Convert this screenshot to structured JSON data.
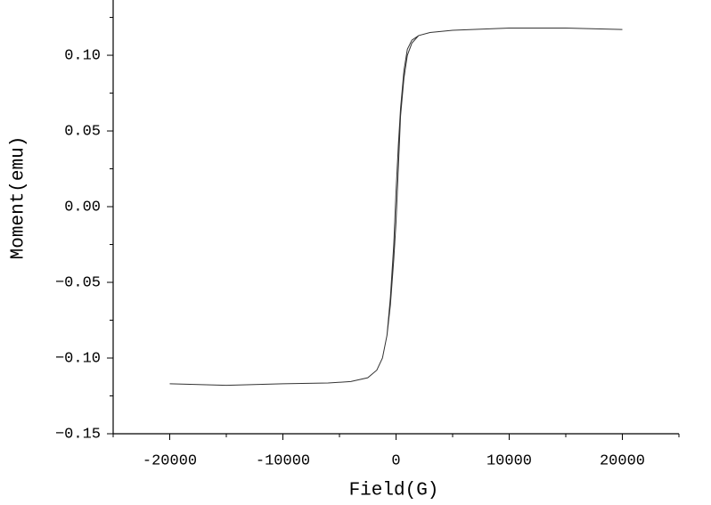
{
  "chart_data": {
    "type": "line",
    "x_label": "Field(G)",
    "y_label": "Moment(emu)",
    "x": [
      20000,
      15000,
      10000,
      5000,
      3000,
      2000,
      1400,
      1000,
      700,
      400,
      200,
      0,
      -200,
      -500,
      -800,
      -1200,
      -1700,
      -2500,
      -4000,
      -6000,
      -10000,
      -15000,
      -20000,
      -15000,
      -10000,
      -6000,
      -4000,
      -2500,
      -1700,
      -1200,
      -800,
      -500,
      -200,
      0,
      200,
      400,
      700,
      1000,
      1400,
      2000,
      3000,
      5000,
      10000,
      15000,
      20000
    ],
    "series": [
      {
        "color": "#333333",
        "values": [
          0.117,
          0.118,
          0.118,
          0.1165,
          0.115,
          0.113,
          0.11,
          0.104,
          0.09,
          0.065,
          0.04,
          0.01,
          -0.025,
          -0.06,
          -0.085,
          -0.1,
          -0.108,
          -0.113,
          -0.1155,
          -0.1165,
          -0.117,
          -0.118,
          -0.117,
          -0.118,
          -0.117,
          -0.1165,
          -0.1155,
          -0.113,
          -0.108,
          -0.1,
          -0.085,
          -0.065,
          -0.035,
          -0.01,
          0.025,
          0.06,
          0.085,
          0.1,
          0.108,
          0.113,
          0.115,
          0.1165,
          0.118,
          0.118,
          0.117
        ]
      }
    ],
    "xlim": [
      -25000,
      25000
    ],
    "xticks": [
      -20000,
      -10000,
      0,
      10000,
      20000
    ],
    "xminorticks": [
      -25000,
      -15000,
      -5000,
      5000,
      15000,
      25000
    ],
    "ylim": [
      -0.15,
      0.1365
    ],
    "yticks": [
      {
        "value": -0.15,
        "label": "−0.15"
      },
      {
        "value": -0.1,
        "label": "−0.10"
      },
      {
        "value": -0.05,
        "label": "−0.05"
      },
      {
        "value": 0,
        "label": "0.00"
      },
      {
        "value": 0.05,
        "label": "0.05"
      },
      {
        "value": 0.1,
        "label": "0.10"
      }
    ],
    "yminorticks": [
      -0.125,
      -0.075,
      -0.025,
      0.025,
      0.075,
      0.125
    ]
  }
}
